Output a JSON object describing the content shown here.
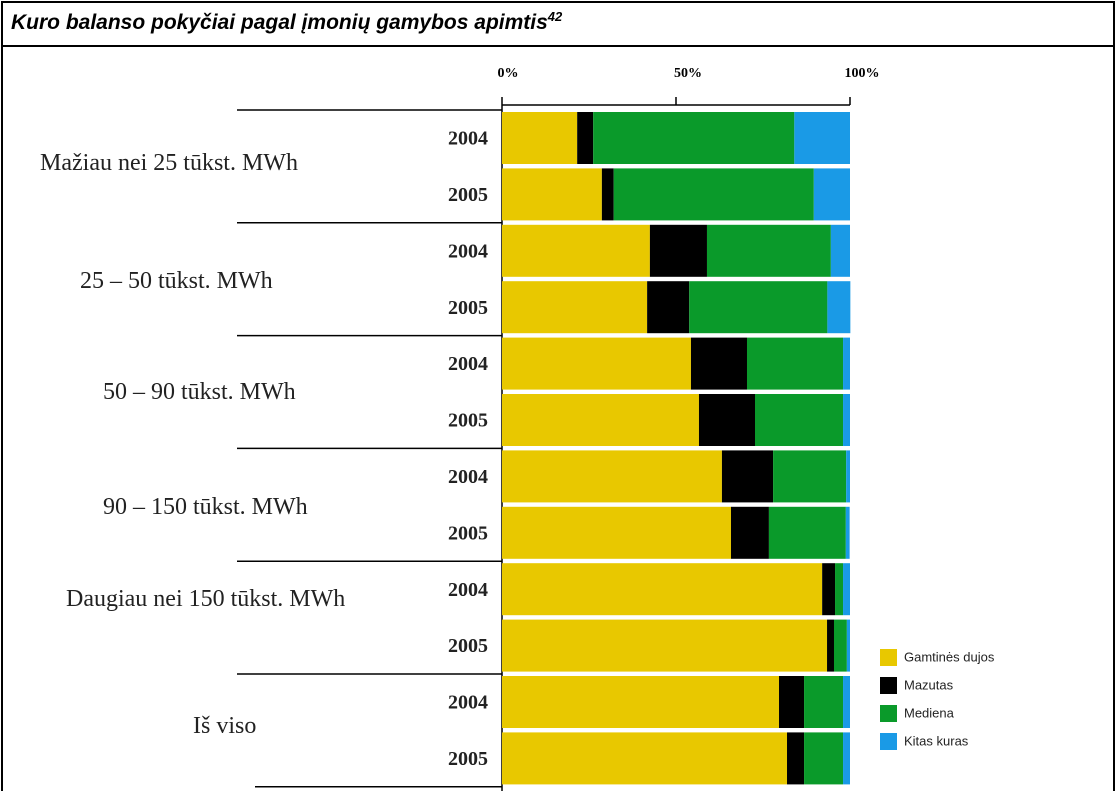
{
  "title": "Kuro balanso pokyčiai pagal įmonių gamybos apimtis",
  "footnote": "42",
  "chart_data": {
    "type": "stacked-barh",
    "groups": [
      "Mažiau nei 25 tūkst. MWh",
      "25 – 50 tūkst. MWh",
      "50 – 90 tūkst. MWh",
      "90 – 150 tūkst. MWh",
      "Daugiau nei 150 tūkst. MWh",
      "Iš viso"
    ],
    "categories": [
      "2004",
      "2005",
      "2004",
      "2005",
      "2004",
      "2005",
      "2004",
      "2005",
      "2004",
      "2005",
      "2004",
      "2005"
    ],
    "series": [
      {
        "name": "Gamtinės dujos",
        "color": "#e8c800",
        "values": [
          21.6,
          28.7,
          42.5,
          41.7,
          54.3,
          56.6,
          63.2,
          65.8,
          92.0,
          93.4,
          79.6,
          81.9
        ]
      },
      {
        "name": "Mazutas",
        "color": "#000000",
        "values": [
          4.6,
          3.4,
          16.4,
          12.1,
          16.1,
          16.1,
          14.7,
          10.9,
          3.7,
          2.0,
          7.2,
          4.9
        ]
      },
      {
        "name": "Mediena",
        "color": "#0a9a2a",
        "values": [
          57.8,
          57.5,
          35.6,
          39.7,
          27.6,
          25.3,
          21.0,
          22.1,
          2.3,
          3.7,
          11.2,
          11.2
        ]
      },
      {
        "name": "Kitas kuras",
        "color": "#1a9ae6",
        "values": [
          16.0,
          10.4,
          5.5,
          6.6,
          2.0,
          2.0,
          1.1,
          1.1,
          2.0,
          0.9,
          2.0,
          2.0
        ]
      }
    ],
    "xlim": [
      0,
      100
    ],
    "xticks": [
      {
        "value": 0,
        "label": "0%"
      },
      {
        "value": 50,
        "label": "50%"
      },
      {
        "value": 100,
        "label": "100%"
      }
    ]
  }
}
